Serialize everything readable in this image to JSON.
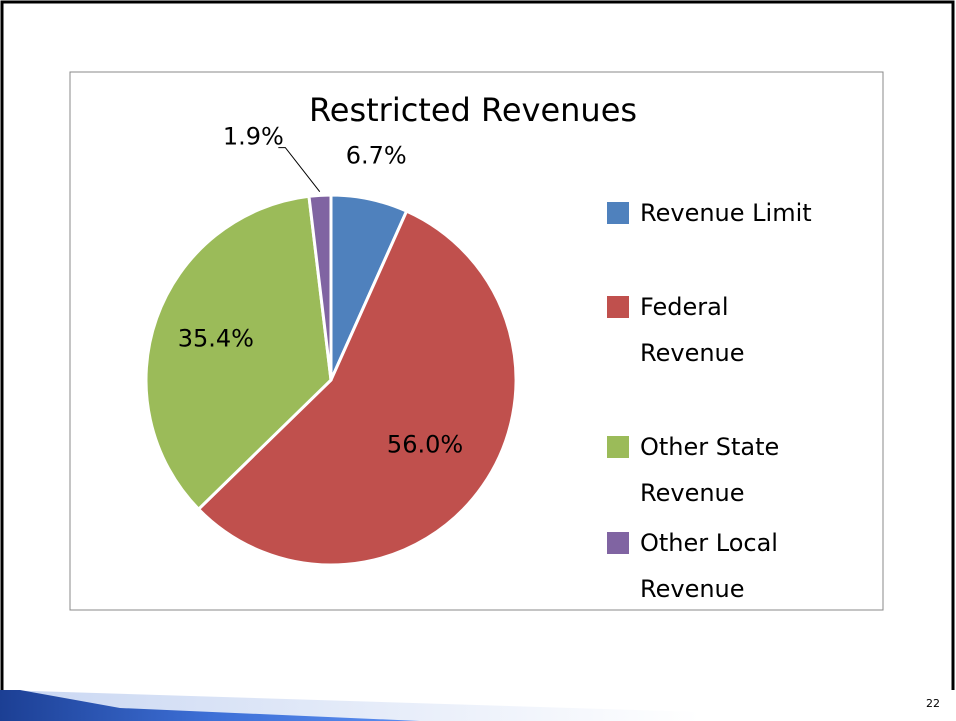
{
  "chart_data": {
    "type": "pie",
    "title": "Restricted Revenues",
    "categories": [
      "Revenue Limit",
      "Federal Revenue",
      "Other State Revenue",
      "Other Local Revenue"
    ],
    "values": [
      6.7,
      56.0,
      35.4,
      1.9
    ],
    "value_labels": [
      "6.7%",
      "56.0%",
      "35.4%",
      "1.9%"
    ],
    "colors": [
      "#4f81bd",
      "#c0504d",
      "#9bbb59",
      "#8064a2"
    ],
    "legend": "right"
  },
  "slide": {
    "page_number": "22"
  }
}
